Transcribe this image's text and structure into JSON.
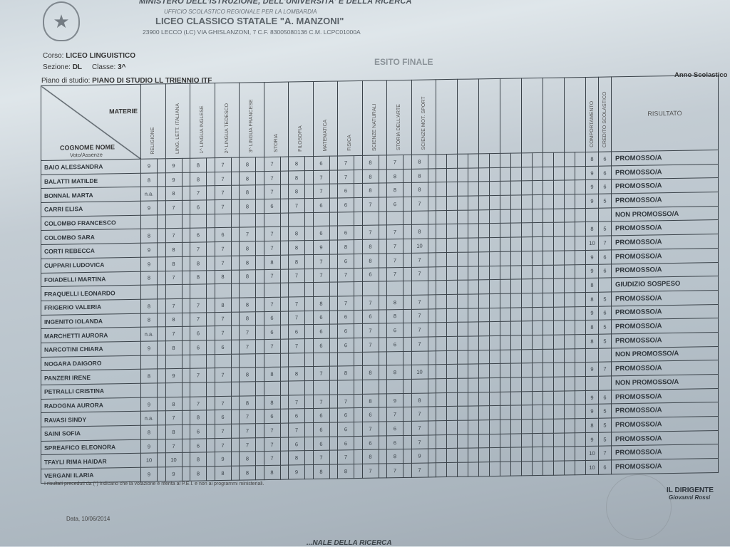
{
  "header": {
    "ministry": "MINISTERO DELL'ISTRUZIONE, DELL'UNIVERSITA' E DELLA RICERCA",
    "office": "UFFICIO SCOLASTICO REGIONALE PER LA LOMBARDIA",
    "school": "LICEO CLASSICO STATALE \"A. MANZONI\"",
    "address": "23900 LECCO (LC) VIA GHISLANZONI, 7 C.F. 83005080136 C.M. LCPC01000A"
  },
  "meta": {
    "corso_label": "Corso:",
    "corso": "LICEO LINGUISTICO",
    "sezione_label": "Sezione:",
    "sezione": "DL",
    "classe_label": "Classe:",
    "classe": "3^",
    "piano_label": "Piano di studio:",
    "piano": "PIANO DI STUDIO LL TRIENNIO ITF",
    "esito": "ESITO FINALE",
    "anno": "Anno Scolastico"
  },
  "table": {
    "materie_label": "MATERIE",
    "cognome_label": "COGNOME NOME",
    "voto_label": "Voto/Assenze",
    "subjects": [
      "RELIGIONE",
      "LING. LETT. ITALIANA",
      "1^ LINGUA INGLESE",
      "2^ LINGUA TEDESCO",
      "3^ LINGUA FRANCESE",
      "STORIA",
      "FILOSOFIA",
      "MATEMATICA",
      "FISICA",
      "SCIENZE NATURALI",
      "STORIA DELL'ARTE",
      "SCIENZE MOT. SPORT"
    ],
    "comportamento_label": "COMPORTAMENTO",
    "credito_label": "CREDITO SCOLASTICO",
    "risultato_label": "RISULTATO",
    "students": [
      {
        "name": "BAIO ALESSANDRA",
        "grades": [
          "9",
          "9",
          "8",
          "7",
          "8",
          "7",
          "8",
          "6",
          "7",
          "8",
          "7",
          "8"
        ],
        "comportamento": "8",
        "credito": "6",
        "risultato": "PROMOSSO/A"
      },
      {
        "name": "BALATTI MATILDE",
        "grades": [
          "8",
          "9",
          "8",
          "7",
          "8",
          "7",
          "8",
          "7",
          "7",
          "8",
          "8",
          "8"
        ],
        "comportamento": "9",
        "credito": "6",
        "risultato": "PROMOSSO/A"
      },
      {
        "name": "BONNAL MARTA",
        "grades": [
          "n.a.",
          "8",
          "7",
          "7",
          "8",
          "7",
          "8",
          "7",
          "6",
          "8",
          "8",
          "8"
        ],
        "comportamento": "9",
        "credito": "6",
        "risultato": "PROMOSSO/A"
      },
      {
        "name": "CARRI ELISA",
        "grades": [
          "9",
          "7",
          "6",
          "7",
          "8",
          "6",
          "7",
          "6",
          "6",
          "7",
          "6",
          "7"
        ],
        "comportamento": "9",
        "credito": "5",
        "risultato": "PROMOSSO/A"
      },
      {
        "name": "COLOMBO FRANCESCO",
        "grades": [
          "",
          "",
          "",
          "",
          "",
          "",
          "",
          "",
          "",
          "",
          "",
          ""
        ],
        "comportamento": "",
        "credito": "",
        "risultato": "NON PROMOSSO/A"
      },
      {
        "name": "COLOMBO SARA",
        "grades": [
          "8",
          "7",
          "6",
          "6",
          "7",
          "7",
          "8",
          "6",
          "6",
          "7",
          "7",
          "8"
        ],
        "comportamento": "8",
        "credito": "5",
        "risultato": "PROMOSSO/A"
      },
      {
        "name": "CORTI REBECCA",
        "grades": [
          "9",
          "8",
          "7",
          "7",
          "8",
          "7",
          "8",
          "9",
          "8",
          "8",
          "7",
          "10"
        ],
        "comportamento": "10",
        "credito": "7",
        "risultato": "PROMOSSO/A"
      },
      {
        "name": "CUPPARI LUDOVICA",
        "grades": [
          "9",
          "8",
          "8",
          "7",
          "8",
          "8",
          "8",
          "7",
          "6",
          "8",
          "7",
          "7"
        ],
        "comportamento": "9",
        "credito": "6",
        "risultato": "PROMOSSO/A"
      },
      {
        "name": "FOIADELLI MARTINA",
        "grades": [
          "8",
          "7",
          "8",
          "8",
          "8",
          "7",
          "7",
          "7",
          "7",
          "6",
          "7",
          "7"
        ],
        "comportamento": "9",
        "credito": "6",
        "risultato": "PROMOSSO/A"
      },
      {
        "name": "FRAQUELLI LEONARDO",
        "grades": [
          "",
          "",
          "",
          "",
          "",
          "",
          "",
          "",
          "",
          "",
          "",
          ""
        ],
        "comportamento": "8",
        "credito": "",
        "risultato": "GIUDIZIO SOSPESO"
      },
      {
        "name": "FRIGERIO VALERIA",
        "grades": [
          "8",
          "7",
          "7",
          "8",
          "8",
          "7",
          "7",
          "8",
          "7",
          "7",
          "8",
          "7"
        ],
        "comportamento": "8",
        "credito": "5",
        "risultato": "PROMOSSO/A"
      },
      {
        "name": "INGENITO IOLANDA",
        "grades": [
          "8",
          "8",
          "7",
          "7",
          "8",
          "6",
          "7",
          "6",
          "6",
          "6",
          "8",
          "7"
        ],
        "comportamento": "9",
        "credito": "6",
        "risultato": "PROMOSSO/A"
      },
      {
        "name": "MARCHETTI AURORA",
        "grades": [
          "n.a.",
          "7",
          "6",
          "7",
          "7",
          "6",
          "6",
          "6",
          "6",
          "7",
          "6",
          "7"
        ],
        "comportamento": "8",
        "credito": "5",
        "risultato": "PROMOSSO/A"
      },
      {
        "name": "NARCOTINI CHIARA",
        "grades": [
          "9",
          "8",
          "6",
          "6",
          "7",
          "7",
          "7",
          "6",
          "6",
          "7",
          "6",
          "7"
        ],
        "comportamento": "8",
        "credito": "5",
        "risultato": "PROMOSSO/A"
      },
      {
        "name": "NOGARA DAIGORO",
        "grades": [
          "",
          "",
          "",
          "",
          "",
          "",
          "",
          "",
          "",
          "",
          "",
          ""
        ],
        "comportamento": "",
        "credito": "",
        "risultato": "NON PROMOSSO/A"
      },
      {
        "name": "PANZERI IRENE",
        "grades": [
          "8",
          "9",
          "7",
          "7",
          "8",
          "8",
          "8",
          "7",
          "8",
          "8",
          "8",
          "10"
        ],
        "comportamento": "9",
        "credito": "7",
        "risultato": "PROMOSSO/A"
      },
      {
        "name": "PETRALLI CRISTINA",
        "grades": [
          "",
          "",
          "",
          "",
          "",
          "",
          "",
          "",
          "",
          "",
          "",
          ""
        ],
        "comportamento": "",
        "credito": "",
        "risultato": "NON PROMOSSO/A"
      },
      {
        "name": "RADOGNA AURORA",
        "grades": [
          "9",
          "8",
          "7",
          "7",
          "8",
          "8",
          "7",
          "7",
          "7",
          "8",
          "9",
          "8"
        ],
        "comportamento": "9",
        "credito": "6",
        "risultato": "PROMOSSO/A"
      },
      {
        "name": "RAVASI SINDY",
        "grades": [
          "n.a.",
          "7",
          "8",
          "6",
          "7",
          "6",
          "6",
          "6",
          "6",
          "6",
          "7",
          "7"
        ],
        "comportamento": "9",
        "credito": "5",
        "risultato": "PROMOSSO/A"
      },
      {
        "name": "SAINI SOFIA",
        "grades": [
          "8",
          "8",
          "6",
          "7",
          "7",
          "7",
          "7",
          "6",
          "6",
          "7",
          "6",
          "7"
        ],
        "comportamento": "8",
        "credito": "5",
        "risultato": "PROMOSSO/A"
      },
      {
        "name": "SPREAFICO ELEONORA",
        "grades": [
          "9",
          "7",
          "6",
          "7",
          "7",
          "7",
          "6",
          "6",
          "6",
          "6",
          "6",
          "7"
        ],
        "comportamento": "9",
        "credito": "5",
        "risultato": "PROMOSSO/A"
      },
      {
        "name": "TFAYLI RIMA HAIDAR",
        "grades": [
          "10",
          "10",
          "8",
          "9",
          "8",
          "7",
          "8",
          "7",
          "7",
          "8",
          "8",
          "9"
        ],
        "comportamento": "10",
        "credito": "7",
        "risultato": "PROMOSSO/A"
      },
      {
        "name": "VERGANI ILARIA",
        "grades": [
          "9",
          "9",
          "8",
          "8",
          "8",
          "8",
          "9",
          "8",
          "8",
          "7",
          "7",
          "7"
        ],
        "comportamento": "10",
        "credito": "6",
        "risultato": "PROMOSSO/A"
      }
    ]
  },
  "footer": {
    "note": "I risultati preceduti da (*) indicano che la votazione è riferita al P.E.I. e non ai programmi ministeriali.",
    "date": "Data, 10/06/2014",
    "dirigente": "IL DIRIGENTE",
    "signature": "Giovanni Rossi",
    "bottom_text": "...NALE DELLA RICERCA"
  }
}
